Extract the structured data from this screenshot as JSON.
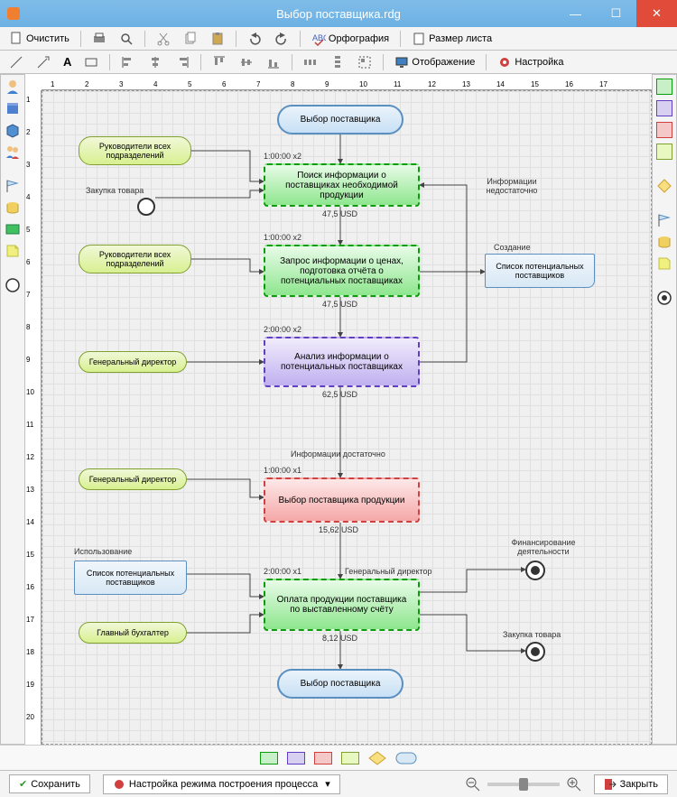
{
  "window": {
    "title": "Выбор поставщика.rdg"
  },
  "toolbar1": {
    "clear": "Очистить",
    "spell": "Орфография",
    "page": "Размер листа"
  },
  "toolbar2": {
    "display": "Отображение",
    "settings": "Настройка"
  },
  "ruler_h": [
    "1",
    "2",
    "3",
    "4",
    "5",
    "6",
    "7",
    "8",
    "9",
    "10",
    "11",
    "12",
    "13",
    "14",
    "15",
    "16",
    "17"
  ],
  "ruler_v": [
    "1",
    "2",
    "3",
    "4",
    "5",
    "6",
    "7",
    "8",
    "9",
    "10",
    "11",
    "12",
    "13",
    "14",
    "15",
    "16",
    "17",
    "18",
    "19",
    "20"
  ],
  "nodes": {
    "start": "Выбор поставщика",
    "p1": "Поиск информации о поставщиках необходимой продукции",
    "p2": "Запрос информации о ценах, подготовка отчёта о потенциальных поставщиках",
    "p3": "Анализ информации о потенциальных поставщиках",
    "p4": "Выбор поставщика продукции",
    "p5": "Оплата продукции поставщика по выставленному счёту",
    "end": "Выбор поставщика"
  },
  "roles": {
    "r1": "Руководители всех подразделений",
    "r2": "Руководители всех подразделений",
    "r3": "Генеральный директор",
    "r4": "Генеральный директор",
    "r5": "Главный бухгалтер",
    "purchase": "Закупка товара"
  },
  "docs": {
    "d1": "Список потенциальных поставщиков",
    "d2": "Список потенциальных поставщиков"
  },
  "times": {
    "t1": "1:00:00 x2",
    "t2": "1:00:00 x2",
    "t3": "2:00:00 x2",
    "t4": "1:00:00 x1",
    "t5": "2:00:00 x1"
  },
  "costs": {
    "c1": "47,5 USD",
    "c2": "47,5 USD",
    "c3": "62,5 USD",
    "c4": "15,62 USD",
    "c5": "8,12 USD"
  },
  "edge_labels": {
    "insufficient": "Информации недостаточно",
    "creation": "Создание",
    "sufficient": "Информации достаточно",
    "usage": "Использование",
    "gendir": "Генеральный директор",
    "financing": "Финансирование деятельности",
    "purchase2": "Закупка товара"
  },
  "legend": {
    "green": {
      "fill": "#c8f0c8",
      "border": "#0a9c0a"
    },
    "purple": {
      "fill": "#d8d0f0",
      "border": "#6040c0"
    },
    "red": {
      "fill": "#f5c8c8",
      "border": "#d04040"
    },
    "lime": {
      "fill": "#e8f8c0",
      "border": "#80a030"
    },
    "blue_oval": {
      "fill": "#d8e8f5",
      "border": "#5a8fc0"
    }
  },
  "bottom": {
    "save": "Сохранить",
    "mode": "Настройка режима построения процесса",
    "close": "Закрыть"
  },
  "colors": {
    "title_bg": "#6cb1e4",
    "close_bg": "#e04b3a"
  }
}
